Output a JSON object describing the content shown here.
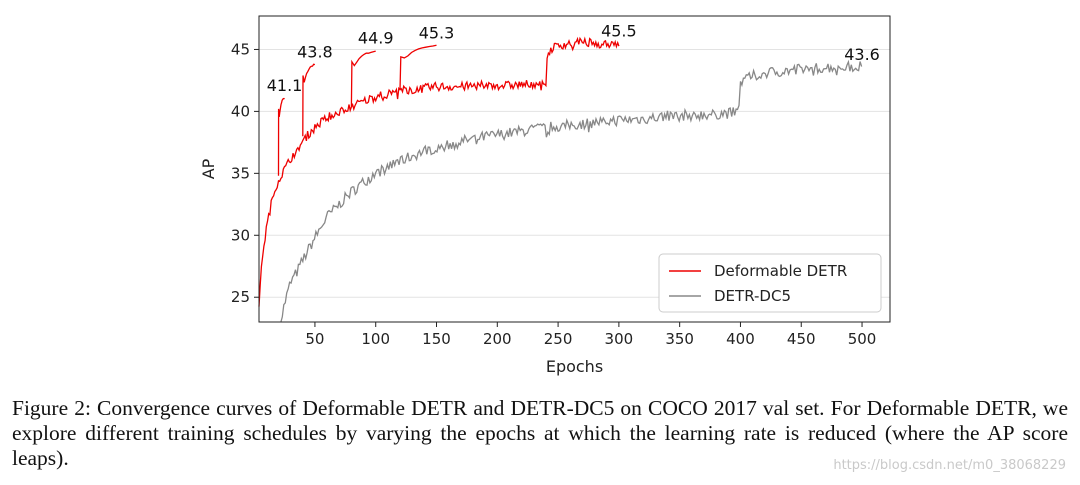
{
  "chart_data": {
    "type": "line",
    "xlabel": "Epochs",
    "ylabel": "AP",
    "xlim": [
      4,
      523
    ],
    "ylim": [
      23,
      47.7
    ],
    "x_ticks": [
      50,
      100,
      150,
      200,
      250,
      300,
      350,
      400,
      450,
      500
    ],
    "y_ticks": [
      25,
      30,
      35,
      40,
      45
    ],
    "grid": "horizontal",
    "legend": "bottom-right",
    "series": [
      {
        "name": "Deformable DETR",
        "color": "#ee0000",
        "x": [
          4,
          7,
          10,
          14,
          18,
          22,
          26,
          32,
          38,
          45,
          52,
          60,
          70,
          80,
          90,
          100,
          110,
          120,
          135,
          150,
          170,
          190,
          210,
          225,
          240,
          241,
          245,
          250,
          260,
          270,
          280,
          290,
          300
        ],
        "y": [
          24.5,
          28.5,
          30.5,
          32.5,
          34,
          34.8,
          35.5,
          36.5,
          37.3,
          38.2,
          38.9,
          39.5,
          40,
          40.4,
          40.8,
          41.2,
          41.4,
          41.7,
          41.8,
          42,
          42,
          42.1,
          42.1,
          42.2,
          42.3,
          44.5,
          45.1,
          45.3,
          45.5,
          45.6,
          45.5,
          45.5,
          45.5
        ]
      },
      {
        "name": "DETR-DC5",
        "color": "#888888",
        "x": [
          22,
          25,
          30,
          35,
          40,
          50,
          60,
          70,
          80,
          90,
          100,
          120,
          140,
          160,
          180,
          200,
          220,
          240,
          260,
          280,
          300,
          320,
          340,
          360,
          380,
          398,
          400,
          405,
          420,
          440,
          460,
          480,
          500
        ],
        "y": [
          23,
          24.5,
          26.2,
          27,
          28,
          29.8,
          31.5,
          32.5,
          33.5,
          34.3,
          35,
          36,
          36.8,
          37.3,
          37.8,
          38.1,
          38.4,
          38.7,
          38.9,
          39.1,
          39.3,
          39.4,
          39.6,
          39.7,
          39.8,
          39.9,
          42.2,
          42.7,
          43.1,
          43.3,
          43.5,
          43.6,
          43.6
        ]
      }
    ],
    "schedules": [
      {
        "start": 20,
        "end": 25,
        "from": 34.8,
        "to": 41.1
      },
      {
        "start": 40,
        "end": 50,
        "from": 38,
        "to": 43.8
      },
      {
        "start": 80,
        "end": 100,
        "from": 40.4,
        "to": 44.9
      },
      {
        "start": 120,
        "end": 150,
        "from": 41.7,
        "to": 45.3
      }
    ],
    "annotations": [
      {
        "x": 25,
        "y": 41.1,
        "text": "41.1"
      },
      {
        "x": 50,
        "y": 43.8,
        "text": "43.8"
      },
      {
        "x": 100,
        "y": 44.9,
        "text": "44.9"
      },
      {
        "x": 150,
        "y": 45.3,
        "text": "45.3"
      },
      {
        "x": 300,
        "y": 45.5,
        "text": "45.5"
      },
      {
        "x": 500,
        "y": 43.6,
        "text": "43.6"
      }
    ]
  },
  "caption": "Figure 2: Convergence curves of Deformable DETR and DETR-DC5 on COCO 2017 val set. For Deformable DETR, we explore different training schedules by varying the epochs at which the learning rate is reduced (where the AP score leaps).",
  "watermark": "https://blog.csdn.net/m0_38068229"
}
